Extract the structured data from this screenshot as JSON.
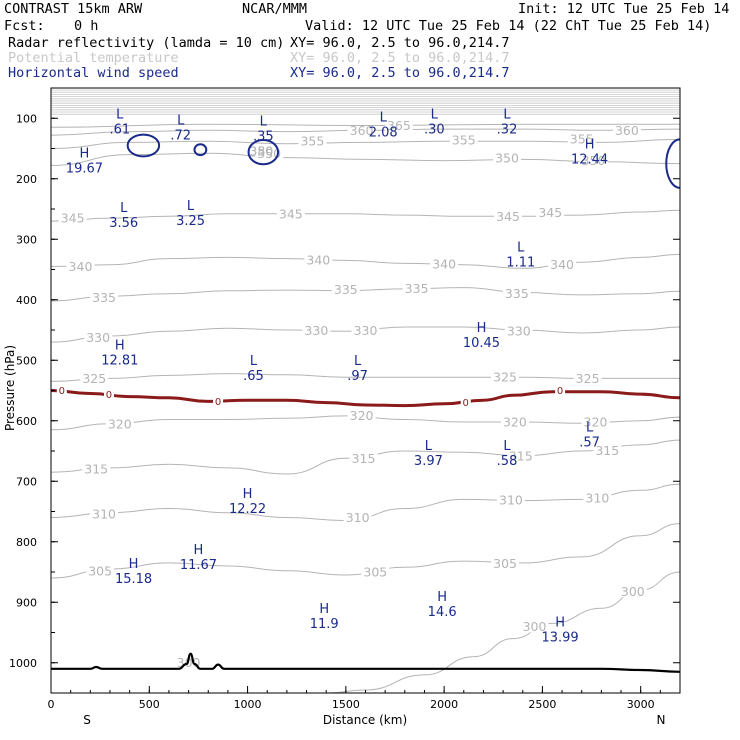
{
  "header": {
    "model": "CONTRAST 15km ARW",
    "org": "NCAR/MMM",
    "init": "Init: 12 UTC Tue 25 Feb 14",
    "fcst_label": "Fcst:",
    "fcst_value": "0 h",
    "valid": "Valid: 12 UTC Tue 25 Feb 14 (22 ChT Tue 25 Feb 14)"
  },
  "fields": [
    {
      "name": "Radar reflectivity (lamda = 10 cm)",
      "xy": "XY=  96.0,  2.5 to  96.0,214.7",
      "color": "#000000"
    },
    {
      "name": "Potential temperature",
      "xy": "XY=  96.0,  2.5 to  96.0,214.7",
      "color": "#c8c8c8"
    },
    {
      "name": "Horizontal wind speed",
      "xy": "XY=  96.0,  2.5 to  96.0,214.7",
      "color": "#1a2a8c"
    }
  ],
  "chart_data": {
    "type": "cross-section",
    "xlabel": "Distance (km)",
    "ylabel": "Pressure (hPa)",
    "xlim": [
      0,
      3200
    ],
    "ylim": [
      1050,
      50
    ],
    "x_ticks": [
      "0",
      "500",
      "1000",
      "1500",
      "2000",
      "2500",
      "3000"
    ],
    "y_ticks": [
      "100",
      "200",
      "300",
      "400",
      "500",
      "600",
      "700",
      "800",
      "900",
      "1000"
    ],
    "x_start_label": "S",
    "x_end_label": "N",
    "theta_contours": [
      {
        "label": "300",
        "points": [
          [
            1400,
            1050
          ],
          [
            1600,
            1045
          ],
          [
            1900,
            1020
          ],
          [
            2150,
            990
          ],
          [
            2350,
            960
          ],
          [
            2550,
            935
          ],
          [
            2800,
            910
          ],
          [
            3000,
            880
          ],
          [
            3200,
            850
          ]
        ],
        "labels_at": [
          [
            2460,
            940
          ],
          [
            2960,
            882
          ]
        ]
      },
      {
        "label": "305",
        "points": [
          [
            0,
            860
          ],
          [
            300,
            845
          ],
          [
            600,
            835
          ],
          [
            900,
            840
          ],
          [
            1200,
            848
          ],
          [
            1500,
            855
          ],
          [
            1800,
            842
          ],
          [
            2100,
            832
          ],
          [
            2400,
            835
          ],
          [
            2700,
            825
          ],
          [
            3000,
            790
          ],
          [
            3200,
            770
          ]
        ],
        "labels_at": [
          [
            250,
            848
          ],
          [
            1650,
            850
          ],
          [
            2310,
            836
          ]
        ]
      },
      {
        "label": "310",
        "points": [
          [
            0,
            760
          ],
          [
            300,
            752
          ],
          [
            600,
            745
          ],
          [
            900,
            752
          ],
          [
            1200,
            760
          ],
          [
            1500,
            765
          ],
          [
            1800,
            745
          ],
          [
            2100,
            730
          ],
          [
            2400,
            732
          ],
          [
            2700,
            730
          ],
          [
            3000,
            715
          ],
          [
            3200,
            705
          ]
        ],
        "labels_at": [
          [
            270,
            754
          ],
          [
            1560,
            760
          ],
          [
            2340,
            731
          ],
          [
            2780,
            728
          ]
        ]
      },
      {
        "label": "315",
        "points": [
          [
            0,
            685
          ],
          [
            300,
            678
          ],
          [
            600,
            672
          ],
          [
            900,
            678
          ],
          [
            1200,
            688
          ],
          [
            1500,
            662
          ],
          [
            1800,
            650
          ],
          [
            2100,
            652
          ],
          [
            2400,
            658
          ],
          [
            2700,
            650
          ],
          [
            3000,
            640
          ],
          [
            3200,
            632
          ]
        ],
        "labels_at": [
          [
            230,
            680
          ],
          [
            1590,
            662
          ],
          [
            2390,
            658
          ],
          [
            2830,
            649
          ]
        ]
      },
      {
        "label": "320",
        "points": [
          [
            0,
            615
          ],
          [
            300,
            605
          ],
          [
            600,
            598
          ],
          [
            900,
            598
          ],
          [
            1200,
            596
          ],
          [
            1500,
            592
          ],
          [
            1800,
            598
          ],
          [
            2100,
            602
          ],
          [
            2400,
            602
          ],
          [
            2700,
            604
          ],
          [
            3000,
            600
          ],
          [
            3200,
            594
          ]
        ],
        "labels_at": [
          [
            350,
            605
          ],
          [
            1580,
            591
          ],
          [
            2360,
            602
          ],
          [
            2770,
            602
          ]
        ]
      },
      {
        "label": "325",
        "points": [
          [
            0,
            535
          ],
          [
            300,
            530
          ],
          [
            600,
            525
          ],
          [
            900,
            522
          ],
          [
            1200,
            524
          ],
          [
            1500,
            528
          ],
          [
            1800,
            528
          ],
          [
            2100,
            528
          ],
          [
            2400,
            528
          ],
          [
            2700,
            530
          ],
          [
            3000,
            530
          ],
          [
            3200,
            530
          ]
        ],
        "labels_at": [
          [
            220,
            530
          ],
          [
            2310,
            528
          ],
          [
            2730,
            530
          ]
        ]
      },
      {
        "label": "330",
        "points": [
          [
            0,
            470
          ],
          [
            300,
            460
          ],
          [
            600,
            452
          ],
          [
            900,
            447
          ],
          [
            1200,
            450
          ],
          [
            1500,
            452
          ],
          [
            1800,
            445
          ],
          [
            2100,
            445
          ],
          [
            2400,
            450
          ],
          [
            2700,
            455
          ],
          [
            3000,
            450
          ],
          [
            3200,
            445
          ]
        ],
        "labels_at": [
          [
            240,
            462
          ],
          [
            1350,
            451
          ],
          [
            1600,
            451
          ],
          [
            2380,
            452
          ]
        ]
      },
      {
        "label": "335",
        "points": [
          [
            0,
            402
          ],
          [
            300,
            394
          ],
          [
            600,
            390
          ],
          [
            900,
            385
          ],
          [
            1200,
            384
          ],
          [
            1500,
            385
          ],
          [
            1800,
            382
          ],
          [
            2100,
            380
          ],
          [
            2400,
            388
          ],
          [
            2700,
            392
          ],
          [
            3000,
            390
          ],
          [
            3200,
            386
          ]
        ],
        "labels_at": [
          [
            270,
            396
          ],
          [
            1500,
            383
          ],
          [
            1860,
            381
          ],
          [
            2370,
            390
          ]
        ]
      },
      {
        "label": "340",
        "points": [
          [
            0,
            345
          ],
          [
            300,
            342
          ],
          [
            600,
            332
          ],
          [
            900,
            330
          ],
          [
            1200,
            332
          ],
          [
            1500,
            335
          ],
          [
            1800,
            340
          ],
          [
            2100,
            342
          ],
          [
            2400,
            348
          ],
          [
            2700,
            338
          ],
          [
            3000,
            330
          ],
          [
            3200,
            325
          ]
        ],
        "labels_at": [
          [
            150,
            345
          ],
          [
            1360,
            334
          ],
          [
            2000,
            341
          ],
          [
            2600,
            342
          ]
        ]
      },
      {
        "label": "345",
        "points": [
          [
            0,
            270
          ],
          [
            300,
            265
          ],
          [
            600,
            262
          ],
          [
            900,
            258
          ],
          [
            1200,
            258
          ],
          [
            1500,
            258
          ],
          [
            1800,
            260
          ],
          [
            2100,
            262
          ],
          [
            2400,
            262
          ],
          [
            2700,
            260
          ],
          [
            3000,
            255
          ],
          [
            3200,
            252
          ]
        ],
        "labels_at": [
          [
            110,
            265
          ],
          [
            1220,
            258
          ],
          [
            2325,
            262
          ],
          [
            2540,
            256
          ]
        ]
      },
      {
        "label": "350",
        "points": [
          [
            0,
            178
          ],
          [
            400,
            160
          ],
          [
            800,
            158
          ],
          [
            1200,
            165
          ],
          [
            1600,
            168
          ],
          [
            2000,
            170
          ],
          [
            2400,
            168
          ],
          [
            2800,
            172
          ],
          [
            3200,
            175
          ]
        ],
        "labels_at": [
          [
            1110,
            158
          ],
          [
            2320,
            166
          ],
          [
            2760,
            170
          ]
        ]
      },
      {
        "label": "355",
        "points": [
          [
            0,
            150
          ],
          [
            400,
            140
          ],
          [
            800,
            138
          ],
          [
            1200,
            142
          ],
          [
            1600,
            140
          ],
          [
            2000,
            138
          ],
          [
            2400,
            138
          ],
          [
            2800,
            140
          ],
          [
            3200,
            135
          ]
        ],
        "labels_at": [
          [
            1330,
            138
          ],
          [
            2100,
            136
          ],
          [
            2700,
            134
          ]
        ]
      },
      {
        "label": "360",
        "points": [
          [
            0,
            128
          ],
          [
            400,
            122
          ],
          [
            800,
            120
          ],
          [
            1200,
            122
          ],
          [
            1600,
            120
          ],
          [
            2000,
            118
          ],
          [
            2400,
            118
          ],
          [
            2800,
            120
          ],
          [
            3200,
            118
          ]
        ],
        "labels_at": [
          [
            1580,
            120
          ],
          [
            2930,
            120
          ]
        ]
      },
      {
        "label": "365",
        "points": [
          [
            0,
            115
          ],
          [
            800,
            110
          ],
          [
            1600,
            112
          ],
          [
            2400,
            110
          ],
          [
            3200,
            110
          ]
        ],
        "labels_at": [
          [
            1770,
            112
          ]
        ]
      }
    ],
    "freezing_level": {
      "label": "0",
      "points": [
        [
          0,
          550
        ],
        [
          200,
          555
        ],
        [
          400,
          560
        ],
        [
          600,
          562
        ],
        [
          800,
          568
        ],
        [
          1000,
          566
        ],
        [
          1200,
          566
        ],
        [
          1400,
          570
        ],
        [
          1600,
          574
        ],
        [
          1800,
          575
        ],
        [
          2000,
          572
        ],
        [
          2200,
          566
        ],
        [
          2350,
          558
        ],
        [
          2550,
          552
        ],
        [
          2800,
          552
        ],
        [
          3000,
          556
        ],
        [
          3200,
          562
        ]
      ],
      "labels_at": [
        [
          55,
          550
        ],
        [
          295,
          557
        ],
        [
          850,
          568
        ],
        [
          2110,
          570
        ],
        [
          2590,
          550
        ]
      ]
    },
    "wind_contours": [
      {
        "cx": 470,
        "cy": 145,
        "rx": 80,
        "ry": 18
      },
      {
        "cx": 760,
        "cy": 152,
        "rx": 30,
        "ry": 9
      },
      {
        "cx": 1080,
        "cy": 156,
        "rx": 75,
        "ry": 20
      },
      {
        "cx": 3200,
        "cy": 175,
        "rx": 70,
        "ry": 40
      }
    ],
    "terrain": [
      [
        0,
        1010
      ],
      [
        200,
        1010
      ],
      [
        230,
        1007
      ],
      [
        260,
        1010
      ],
      [
        650,
        1010
      ],
      [
        690,
        1002
      ],
      [
        710,
        985
      ],
      [
        730,
        1002
      ],
      [
        760,
        1010
      ],
      [
        820,
        1010
      ],
      [
        850,
        1003
      ],
      [
        880,
        1010
      ],
      [
        1500,
        1010
      ],
      [
        2000,
        1010
      ],
      [
        2500,
        1010
      ],
      [
        2800,
        1010
      ],
      [
        3000,
        1012
      ],
      [
        3200,
        1015
      ]
    ],
    "extrema": [
      {
        "kind": "L",
        "value": ".61",
        "x": 350,
        "p": 100
      },
      {
        "kind": "L",
        "value": ".72",
        "x": 660,
        "p": 110
      },
      {
        "kind": "L",
        "value": ".35",
        "x": 1080,
        "p": 112
      },
      {
        "kind": "L",
        "value": "2.08",
        "x": 1690,
        "p": 105
      },
      {
        "kind": "L",
        "value": ".30",
        "x": 1950,
        "p": 100
      },
      {
        "kind": "L",
        "value": ".32",
        "x": 2320,
        "p": 100
      },
      {
        "kind": "H",
        "value": "19.67",
        "x": 170,
        "p": 165
      },
      {
        "kind": "H",
        "value": "12.44",
        "x": 2740,
        "p": 150
      },
      {
        "kind": "L",
        "value": "3.56",
        "x": 370,
        "p": 255
      },
      {
        "kind": "L",
        "value": "3.25",
        "x": 710,
        "p": 252
      },
      {
        "kind": "L",
        "value": "1.11",
        "x": 2390,
        "p": 320
      },
      {
        "kind": "H",
        "value": "10.45",
        "x": 2190,
        "p": 453
      },
      {
        "kind": "H",
        "value": "12.81",
        "x": 350,
        "p": 482
      },
      {
        "kind": "L",
        "value": ".65",
        "x": 1030,
        "p": 508
      },
      {
        "kind": "L",
        "value": ".97",
        "x": 1560,
        "p": 508
      },
      {
        "kind": "L",
        "value": ".57",
        "x": 2740,
        "p": 618
      },
      {
        "kind": "L",
        "value": "3.97",
        "x": 1920,
        "p": 648
      },
      {
        "kind": "L",
        "value": ".58",
        "x": 2320,
        "p": 648
      },
      {
        "kind": "H",
        "value": "12.22",
        "x": 1000,
        "p": 728
      },
      {
        "kind": "H",
        "value": "11.67",
        "x": 750,
        "p": 820
      },
      {
        "kind": "H",
        "value": "15.18",
        "x": 420,
        "p": 843
      },
      {
        "kind": "H",
        "value": "14.6",
        "x": 1990,
        "p": 898
      },
      {
        "kind": "H",
        "value": "11.9",
        "x": 1390,
        "p": 918
      },
      {
        "kind": "H",
        "value": "13.99",
        "x": 2590,
        "p": 940
      }
    ],
    "extra_labels": [
      {
        "text": "380",
        "x": 1070,
        "p": 155
      },
      {
        "text": "350",
        "x": 1070,
        "p": 155
      },
      {
        "text": "300",
        "x": 700,
        "p": 1000
      }
    ]
  }
}
